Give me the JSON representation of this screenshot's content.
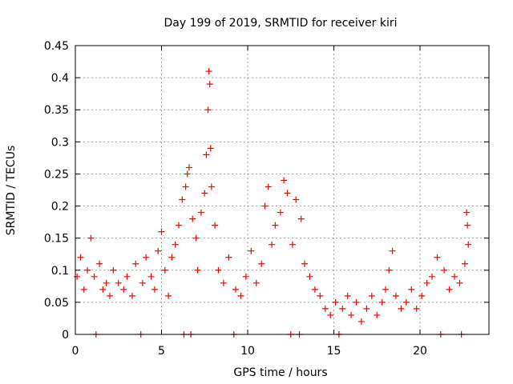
{
  "chart_data": {
    "type": "scatter",
    "title": "Day 199 of 2019, SRMTID for receiver kiri",
    "xlabel": "GPS time / hours",
    "ylabel": "SRMTID / TECUs",
    "xlim": [
      0,
      24
    ],
    "ylim": [
      0,
      0.45
    ],
    "x_ticks": [
      0,
      5,
      10,
      15,
      20
    ],
    "x_tick_labels": [
      "0",
      "5",
      "10",
      "15",
      "20"
    ],
    "y_ticks": [
      0,
      0.05,
      0.1,
      0.15,
      0.2,
      0.25,
      0.3,
      0.35,
      0.4,
      0.45
    ],
    "y_tick_labels": [
      "0",
      "0.05",
      "0.1",
      "0.15",
      "0.2",
      "0.25",
      "0.3",
      "0.35",
      "0.4",
      "0.45"
    ],
    "grid": true,
    "marker": "plus",
    "color": "#ff0000",
    "series": [
      {
        "name": "SRMTID",
        "points": [
          [
            0.1,
            0.09
          ],
          [
            0.3,
            0.12
          ],
          [
            0.5,
            0.07
          ],
          [
            0.7,
            0.1
          ],
          [
            0.9,
            0.15
          ],
          [
            1.1,
            0.09
          ],
          [
            1.2,
            0.0
          ],
          [
            1.4,
            0.11
          ],
          [
            1.6,
            0.07
          ],
          [
            1.8,
            0.08
          ],
          [
            2.0,
            0.06
          ],
          [
            2.2,
            0.1
          ],
          [
            2.5,
            0.08
          ],
          [
            2.8,
            0.07
          ],
          [
            3.0,
            0.09
          ],
          [
            3.3,
            0.06
          ],
          [
            3.5,
            0.11
          ],
          [
            3.8,
            0.0
          ],
          [
            3.9,
            0.08
          ],
          [
            4.1,
            0.12
          ],
          [
            4.4,
            0.09
          ],
          [
            4.6,
            0.07
          ],
          [
            4.8,
            0.13
          ],
          [
            5.0,
            0.16
          ],
          [
            5.2,
            0.1
          ],
          [
            5.4,
            0.06
          ],
          [
            5.6,
            0.12
          ],
          [
            5.8,
            0.14
          ],
          [
            6.0,
            0.17
          ],
          [
            6.2,
            0.21
          ],
          [
            6.3,
            0.0
          ],
          [
            6.4,
            0.23
          ],
          [
            6.5,
            0.25
          ],
          [
            6.6,
            0.26
          ],
          [
            6.7,
            0.0
          ],
          [
            6.8,
            0.18
          ],
          [
            7.0,
            0.15
          ],
          [
            7.1,
            0.1
          ],
          [
            7.3,
            0.19
          ],
          [
            7.5,
            0.22
          ],
          [
            7.6,
            0.28
          ],
          [
            7.7,
            0.35
          ],
          [
            7.75,
            0.41
          ],
          [
            7.8,
            0.39
          ],
          [
            7.85,
            0.29
          ],
          [
            7.9,
            0.23
          ],
          [
            8.1,
            0.17
          ],
          [
            8.3,
            0.1
          ],
          [
            8.6,
            0.08
          ],
          [
            8.9,
            0.12
          ],
          [
            9.2,
            0.0
          ],
          [
            9.3,
            0.07
          ],
          [
            9.6,
            0.06
          ],
          [
            9.9,
            0.09
          ],
          [
            10.2,
            0.13
          ],
          [
            10.5,
            0.08
          ],
          [
            10.8,
            0.11
          ],
          [
            11.0,
            0.2
          ],
          [
            11.2,
            0.23
          ],
          [
            11.4,
            0.14
          ],
          [
            11.6,
            0.17
          ],
          [
            11.9,
            0.19
          ],
          [
            12.1,
            0.24
          ],
          [
            12.3,
            0.22
          ],
          [
            12.5,
            0.0
          ],
          [
            12.6,
            0.14
          ],
          [
            12.8,
            0.21
          ],
          [
            13.0,
            0.0
          ],
          [
            13.1,
            0.18
          ],
          [
            13.3,
            0.11
          ],
          [
            13.6,
            0.09
          ],
          [
            13.9,
            0.07
          ],
          [
            14.2,
            0.06
          ],
          [
            14.5,
            0.04
          ],
          [
            14.8,
            0.03
          ],
          [
            15.1,
            0.05
          ],
          [
            15.3,
            0.0
          ],
          [
            15.5,
            0.04
          ],
          [
            15.8,
            0.06
          ],
          [
            16.0,
            0.03
          ],
          [
            16.3,
            0.05
          ],
          [
            16.6,
            0.02
          ],
          [
            16.9,
            0.04
          ],
          [
            17.2,
            0.06
          ],
          [
            17.5,
            0.03
          ],
          [
            17.8,
            0.05
          ],
          [
            18.0,
            0.07
          ],
          [
            18.2,
            0.1
          ],
          [
            18.4,
            0.13
          ],
          [
            18.6,
            0.06
          ],
          [
            18.9,
            0.04
          ],
          [
            19.2,
            0.05
          ],
          [
            19.5,
            0.07
          ],
          [
            19.8,
            0.04
          ],
          [
            20.1,
            0.06
          ],
          [
            20.4,
            0.08
          ],
          [
            20.7,
            0.09
          ],
          [
            21.0,
            0.12
          ],
          [
            21.2,
            0.0
          ],
          [
            21.4,
            0.1
          ],
          [
            21.7,
            0.07
          ],
          [
            22.0,
            0.09
          ],
          [
            22.3,
            0.08
          ],
          [
            22.4,
            0.0
          ],
          [
            22.6,
            0.11
          ],
          [
            22.7,
            0.19
          ],
          [
            22.75,
            0.17
          ],
          [
            22.8,
            0.14
          ]
        ]
      }
    ]
  }
}
